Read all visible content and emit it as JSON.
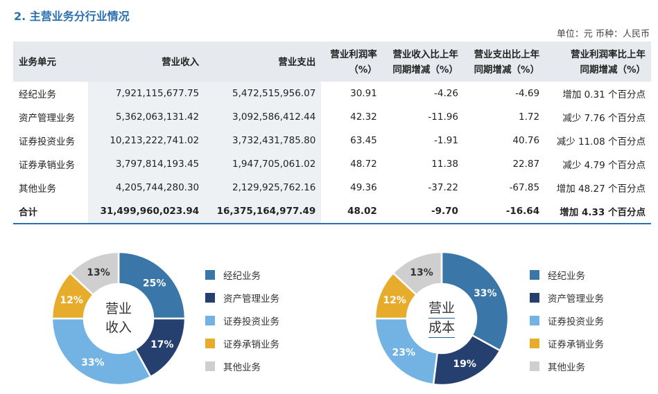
{
  "title": "2. 主营业务分行业情况",
  "unit_note": "单位：元 币种：人民币",
  "table": {
    "headers": [
      [
        "业务单元"
      ],
      [
        "营业收入"
      ],
      [
        "营业支出"
      ],
      [
        "营业利润率",
        "（%）"
      ],
      [
        "营业收入比上年",
        "同期增减（%）"
      ],
      [
        "营业支出比上年",
        "同期增减（%）"
      ],
      [
        "营业利润率比上年",
        "同期增减（%）"
      ]
    ],
    "rows": [
      [
        "经纪业务",
        "7,921,115,677.75",
        "5,472,515,956.07",
        "30.91",
        "-4.26",
        "-4.69",
        "增加 0.31 个百分点"
      ],
      [
        "资产管理业务",
        "5,362,063,131.42",
        "3,092,586,412.44",
        "42.32",
        "-11.96",
        "1.72",
        "减少 7.76 个百分点"
      ],
      [
        "证券投资业务",
        "10,213,222,741.02",
        "3,732,431,785.80",
        "63.45",
        "-1.91",
        "40.76",
        "减少 11.08 个百分点"
      ],
      [
        "证券承销业务",
        "3,797,814,193.45",
        "1,947,705,061.02",
        "48.72",
        "11.38",
        "22.87",
        "减少 4.79 个百分点"
      ],
      [
        "其他业务",
        "4,205,744,280.30",
        "2,129,925,762.16",
        "49.36",
        "-37.22",
        "-67.85",
        "增加 48.27 个百分点"
      ]
    ],
    "total": [
      "合计",
      "31,499,960,023.94",
      "16,375,164,977.49",
      "48.02",
      "-9.70",
      "-16.64",
      "增加 4.33 个百分点"
    ]
  },
  "chart_data": [
    {
      "type": "pie",
      "title": "营业收入",
      "center_lines": [
        "营业",
        "收入"
      ],
      "categories": [
        "经纪业务",
        "资产管理业务",
        "证券投资业务",
        "证券承销业务",
        "其他业务"
      ],
      "values": [
        25,
        17,
        33,
        12,
        13
      ],
      "labels": [
        "25%",
        "17%",
        "33%",
        "12%",
        "13%"
      ],
      "colors": [
        "#3a76a8",
        "#253f6e",
        "#73b3e3",
        "#e7ac2c",
        "#cfcfcf"
      ]
    },
    {
      "type": "pie",
      "title": "营业成本",
      "center_lines": [
        "营业",
        "成本"
      ],
      "categories": [
        "经纪业务",
        "资产管理业务",
        "证券投资业务",
        "证券承销业务",
        "其他业务"
      ],
      "values": [
        33,
        19,
        23,
        12,
        13
      ],
      "labels": [
        "33%",
        "19%",
        "23%",
        "12%",
        "13%"
      ],
      "colors": [
        "#3a76a8",
        "#253f6e",
        "#73b3e3",
        "#e7ac2c",
        "#cfcfcf"
      ]
    }
  ],
  "legend": {
    "items": [
      "经纪业务",
      "资产管理业务",
      "证券投资业务",
      "证券承销业务",
      "其他业务"
    ],
    "colors": [
      "#3a76a8",
      "#253f6e",
      "#73b3e3",
      "#e7ac2c",
      "#cfcfcf"
    ]
  }
}
